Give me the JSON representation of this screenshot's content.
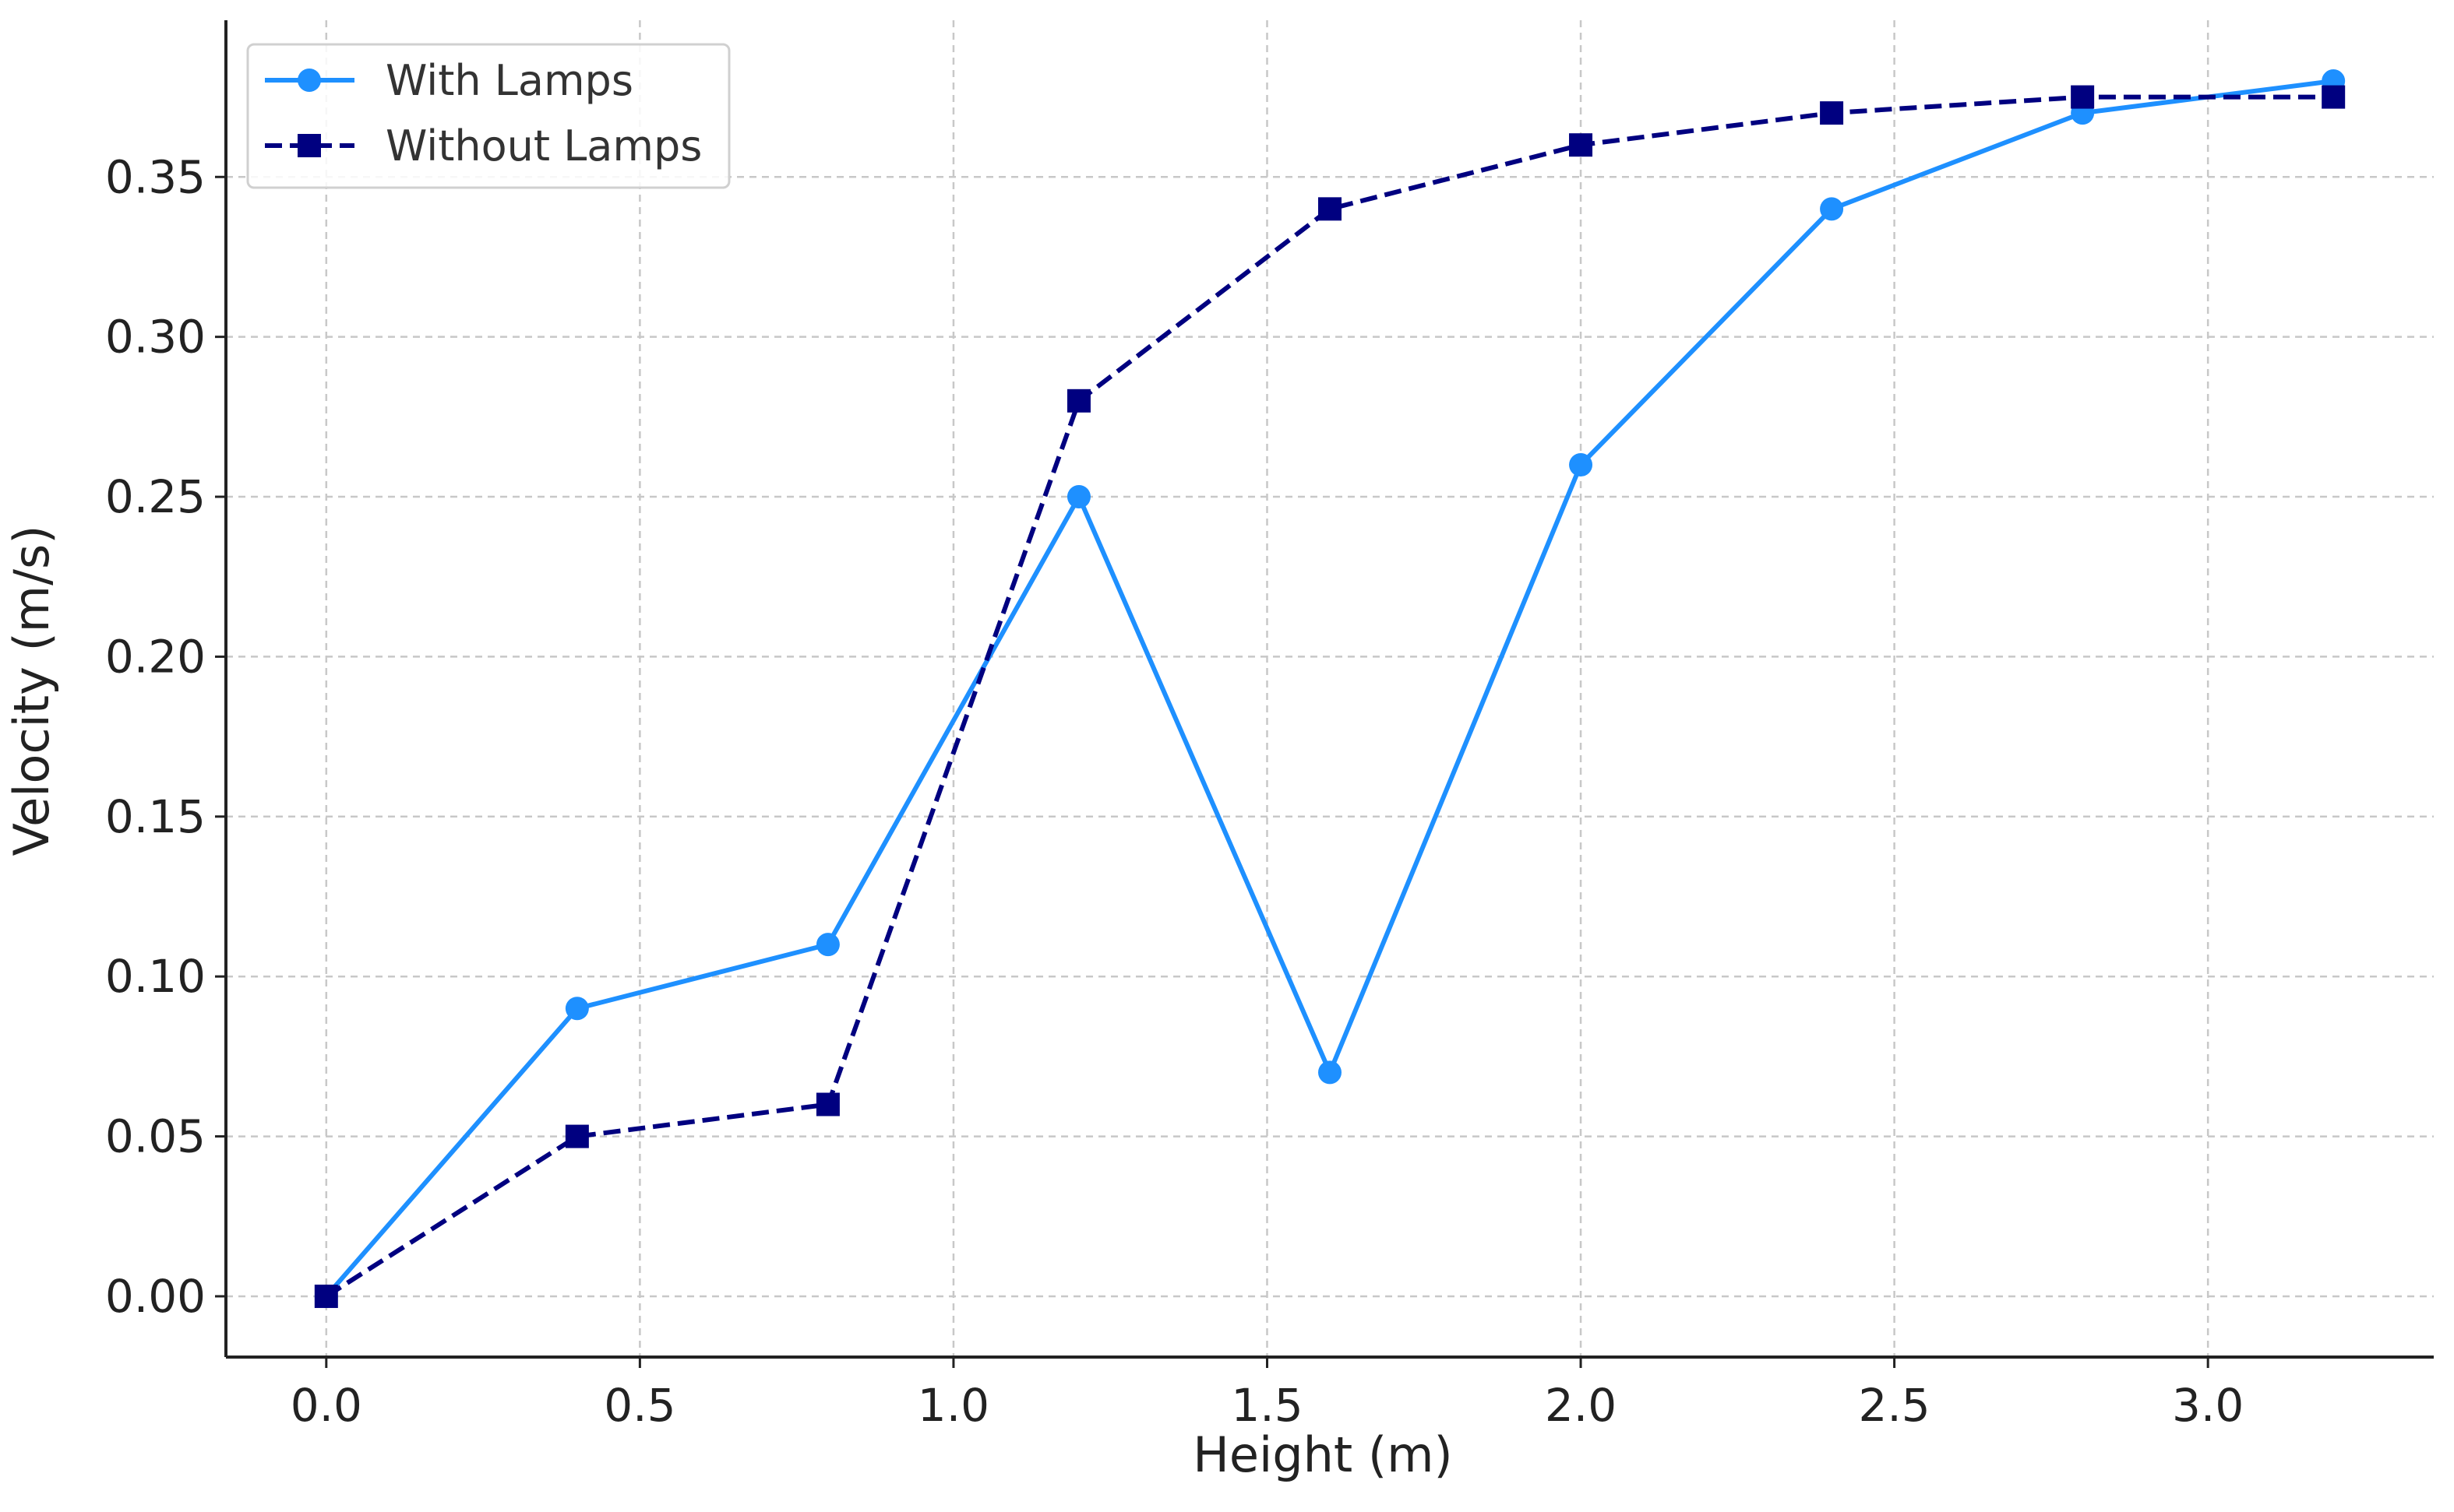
{
  "chart_data": {
    "type": "line",
    "title": "",
    "xlabel": "Height (m)",
    "ylabel": "Velocity (m/s)",
    "xlim": [
      -0.16,
      3.36
    ],
    "ylim": [
      -0.019,
      0.399
    ],
    "xticks": [
      0.0,
      0.5,
      1.0,
      1.5,
      2.0,
      2.5,
      3.0
    ],
    "xtick_labels": [
      "0.0",
      "0.5",
      "1.0",
      "1.5",
      "2.0",
      "2.5",
      "3.0"
    ],
    "yticks": [
      0.0,
      0.05,
      0.1,
      0.15,
      0.2,
      0.25,
      0.3,
      0.35
    ],
    "ytick_labels": [
      "0.00",
      "0.05",
      "0.10",
      "0.15",
      "0.20",
      "0.25",
      "0.30",
      "0.35"
    ],
    "grid": true,
    "legend_position": "top-left",
    "x": [
      0.0,
      0.4,
      0.8,
      1.2,
      1.6,
      2.0,
      2.4,
      2.8,
      3.2
    ],
    "series": [
      {
        "name": "With Lamps",
        "values": [
          0.0,
          0.09,
          0.11,
          0.25,
          0.07,
          0.26,
          0.34,
          0.37,
          0.38
        ],
        "color": "#1E90FF",
        "line_style": "solid",
        "marker": "circle"
      },
      {
        "name": "Without Lamps",
        "values": [
          0.0,
          0.05,
          0.06,
          0.28,
          0.34,
          0.36,
          0.37,
          0.375,
          0.375
        ],
        "color": "#000080",
        "line_style": "dashed",
        "marker": "square"
      }
    ]
  }
}
